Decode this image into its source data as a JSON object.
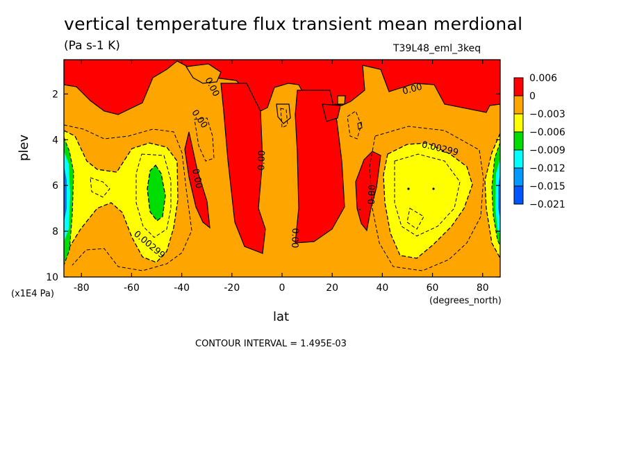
{
  "chart_data": {
    "type": "heatmap",
    "title": "vertical temperature flux transient mean merdional",
    "subtitle": "(Pa s-1 K)",
    "run_label": "T39L48_eml_3keq",
    "xlabel": "lat",
    "xlabel_units": "(degrees_north)",
    "ylabel": "plev",
    "ylabel_units": "(x1E4 Pa)",
    "xlim": [
      -87,
      87
    ],
    "ylim": [
      10,
      0.5
    ],
    "x_ticks": [
      {
        "value": -80,
        "label": "-80"
      },
      {
        "value": -60,
        "label": "-60"
      },
      {
        "value": -40,
        "label": "-40"
      },
      {
        "value": -20,
        "label": "-20"
      },
      {
        "value": 0,
        "label": "0"
      },
      {
        "value": 20,
        "label": "20"
      },
      {
        "value": 40,
        "label": "40"
      },
      {
        "value": 60,
        "label": "60"
      },
      {
        "value": 80,
        "label": "80"
      }
    ],
    "y_ticks": [
      {
        "value": 2,
        "label": "2"
      },
      {
        "value": 4,
        "label": "4"
      },
      {
        "value": 6,
        "label": "6"
      },
      {
        "value": 8,
        "label": "8"
      },
      {
        "value": 10,
        "label": "10"
      }
    ],
    "colorbar": {
      "placement": "right",
      "levels": [
        "0.006",
        "0",
        "−0.003",
        "−0.006",
        "−0.009",
        "−0.012",
        "−0.015",
        "−0.021"
      ],
      "colors": [
        "#ff0000",
        "#ffa500",
        "#ffff00",
        "#00dd00",
        "#00ffff",
        "#0099ff",
        "#0055ff"
      ]
    },
    "contour_labels": [
      {
        "lat": -28,
        "plev": 1.7,
        "text": "0.00",
        "rot": 62
      },
      {
        "lat": -33,
        "plev": 3.1,
        "text": "0.00",
        "rot": 55
      },
      {
        "lat": -34,
        "plev": 5.7,
        "text": "0.00",
        "rot": 78
      },
      {
        "lat": -8,
        "plev": 4.9,
        "text": "0.00",
        "rot": -88
      },
      {
        "lat": 5,
        "plev": 8.3,
        "text": "0.00",
        "rot": 92
      },
      {
        "lat": 36,
        "plev": 6.4,
        "text": "0.00",
        "rot": -87
      },
      {
        "lat": 52,
        "plev": 1.8,
        "text": "0.00",
        "rot": -15
      },
      {
        "lat": 63,
        "plev": 4.4,
        "text": "0.00299",
        "rot": 13
      },
      {
        "lat": -53,
        "plev": 8.6,
        "text": "0.00299",
        "rot": 40
      }
    ],
    "contour_interval_label": "CONTOUR INTERVAL = 1.495E-03"
  }
}
